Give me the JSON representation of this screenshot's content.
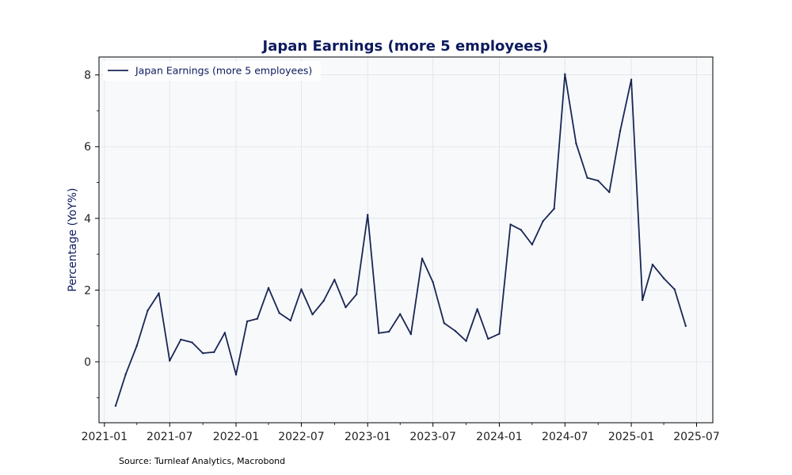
{
  "chart_data": {
    "type": "line",
    "title": "Japan Earnings (more 5 employees)",
    "ylabel": "Percentage (YoY%)",
    "xlabel": "",
    "ylim": [
      -1.7,
      8.5
    ],
    "xlim": [
      "2020-12-17",
      "2025-08-15"
    ],
    "yticks": [
      0,
      2,
      4,
      6,
      8
    ],
    "ytick_labels": [
      "0",
      "2",
      "4",
      "6",
      "8"
    ],
    "xticks": [
      "2021-01-01",
      "2021-07-01",
      "2022-01-01",
      "2022-07-01",
      "2023-01-01",
      "2023-07-01",
      "2024-01-01",
      "2024-07-01",
      "2025-01-01",
      "2025-07-01"
    ],
    "xtick_labels": [
      "2021-01",
      "2021-07",
      "2022-01",
      "2022-07",
      "2023-01",
      "2023-07",
      "2024-01",
      "2024-07",
      "2025-01",
      "2025-07"
    ],
    "grid": true,
    "legend_position": "top-left",
    "colors": {
      "line": "#1a2654",
      "background": "#f7f9fb",
      "grid": "#dfe3e8",
      "text": "#0d1a5e"
    },
    "series": [
      {
        "name": "Japan Earnings (more 5 employees)",
        "x": [
          "2021-02-01",
          "2021-03-01",
          "2021-04-01",
          "2021-05-01",
          "2021-06-01",
          "2021-07-01",
          "2021-08-01",
          "2021-09-01",
          "2021-10-01",
          "2021-11-01",
          "2021-12-01",
          "2022-01-01",
          "2022-02-01",
          "2022-03-01",
          "2022-04-01",
          "2022-05-01",
          "2022-06-01",
          "2022-07-01",
          "2022-08-01",
          "2022-09-01",
          "2022-10-01",
          "2022-11-01",
          "2022-12-01",
          "2023-01-01",
          "2023-02-01",
          "2023-03-01",
          "2023-04-01",
          "2023-05-01",
          "2023-06-01",
          "2023-07-01",
          "2023-08-01",
          "2023-09-01",
          "2023-10-01",
          "2023-11-01",
          "2023-12-01",
          "2024-01-01",
          "2024-02-01",
          "2024-03-01",
          "2024-04-01",
          "2024-05-01",
          "2024-06-01",
          "2024-07-01",
          "2024-08-01",
          "2024-09-01",
          "2024-10-01",
          "2024-11-01",
          "2024-12-01",
          "2025-01-01",
          "2025-02-01",
          "2025-03-01",
          "2025-04-01",
          "2025-05-01",
          "2025-06-01"
        ],
        "values": [
          -1.23,
          -0.35,
          0.45,
          1.43,
          1.91,
          0.03,
          0.62,
          0.54,
          0.24,
          0.27,
          0.81,
          -0.36,
          1.13,
          1.2,
          2.06,
          1.36,
          1.15,
          2.02,
          1.32,
          1.7,
          2.29,
          1.52,
          1.88,
          4.1,
          0.8,
          0.84,
          1.33,
          0.77,
          2.88,
          2.22,
          1.08,
          0.86,
          0.58,
          1.47,
          0.64,
          0.78,
          3.83,
          3.68,
          3.27,
          3.92,
          4.27,
          8.02,
          6.09,
          5.13,
          5.05,
          4.73,
          6.43,
          7.87,
          1.72,
          2.71,
          2.33,
          2.02,
          1.0
        ]
      }
    ],
    "source": "Source: Turnleaf Analytics, Macrobond"
  }
}
